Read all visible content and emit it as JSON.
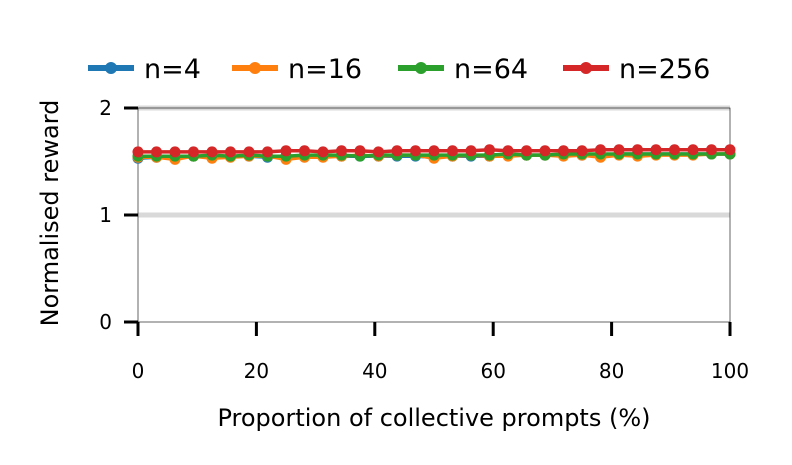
{
  "chart_data": {
    "type": "line",
    "title": "",
    "xlabel": "Proportion of collective prompts (%)",
    "ylabel": "Normalised reward",
    "xlim": [
      0,
      100
    ],
    "ylim": [
      0,
      2
    ],
    "xticks": [
      "0",
      "20",
      "40",
      "60",
      "80",
      "100"
    ],
    "yticks": [
      "0",
      "1",
      "2"
    ],
    "reference_lines": [
      1,
      2
    ],
    "grid": false,
    "legend_position": "top",
    "x": [
      0,
      3.125,
      6.25,
      9.375,
      12.5,
      15.625,
      18.75,
      21.875,
      25,
      28.125,
      31.25,
      34.375,
      37.5,
      40.625,
      43.75,
      46.875,
      50,
      53.125,
      56.25,
      59.375,
      62.5,
      65.625,
      68.75,
      71.875,
      75,
      78.125,
      81.25,
      84.375,
      87.5,
      90.625,
      93.75,
      96.875,
      100
    ],
    "series": [
      {
        "name": "n=4",
        "color": "#1f77b4",
        "values": [
          1.53,
          1.54,
          1.54,
          1.55,
          1.54,
          1.55,
          1.55,
          1.54,
          1.55,
          1.55,
          1.55,
          1.55,
          1.55,
          1.55,
          1.55,
          1.55,
          1.54,
          1.55,
          1.55,
          1.55,
          1.56,
          1.56,
          1.56,
          1.56,
          1.56,
          1.56,
          1.57,
          1.57,
          1.57,
          1.57,
          1.57,
          1.57,
          1.57
        ]
      },
      {
        "name": "n=16",
        "color": "#ff7f0e",
        "values": [
          1.54,
          1.54,
          1.52,
          1.55,
          1.53,
          1.54,
          1.55,
          1.55,
          1.52,
          1.54,
          1.54,
          1.55,
          1.56,
          1.55,
          1.56,
          1.56,
          1.53,
          1.55,
          1.56,
          1.55,
          1.55,
          1.56,
          1.56,
          1.55,
          1.56,
          1.54,
          1.56,
          1.55,
          1.56,
          1.56,
          1.56,
          1.57,
          1.57
        ]
      },
      {
        "name": "n=64",
        "color": "#2ca02c",
        "values": [
          1.55,
          1.55,
          1.55,
          1.55,
          1.56,
          1.55,
          1.56,
          1.55,
          1.55,
          1.56,
          1.56,
          1.56,
          1.55,
          1.56,
          1.56,
          1.56,
          1.56,
          1.56,
          1.56,
          1.56,
          1.57,
          1.56,
          1.56,
          1.57,
          1.57,
          1.57,
          1.57,
          1.57,
          1.57,
          1.57,
          1.57,
          1.57,
          1.57
        ]
      },
      {
        "name": "n=256",
        "color": "#d62728",
        "values": [
          1.59,
          1.59,
          1.59,
          1.59,
          1.59,
          1.59,
          1.59,
          1.59,
          1.6,
          1.6,
          1.59,
          1.6,
          1.6,
          1.59,
          1.6,
          1.6,
          1.6,
          1.6,
          1.6,
          1.61,
          1.6,
          1.6,
          1.6,
          1.6,
          1.6,
          1.61,
          1.61,
          1.61,
          1.61,
          1.61,
          1.61,
          1.61,
          1.61
        ]
      }
    ]
  }
}
